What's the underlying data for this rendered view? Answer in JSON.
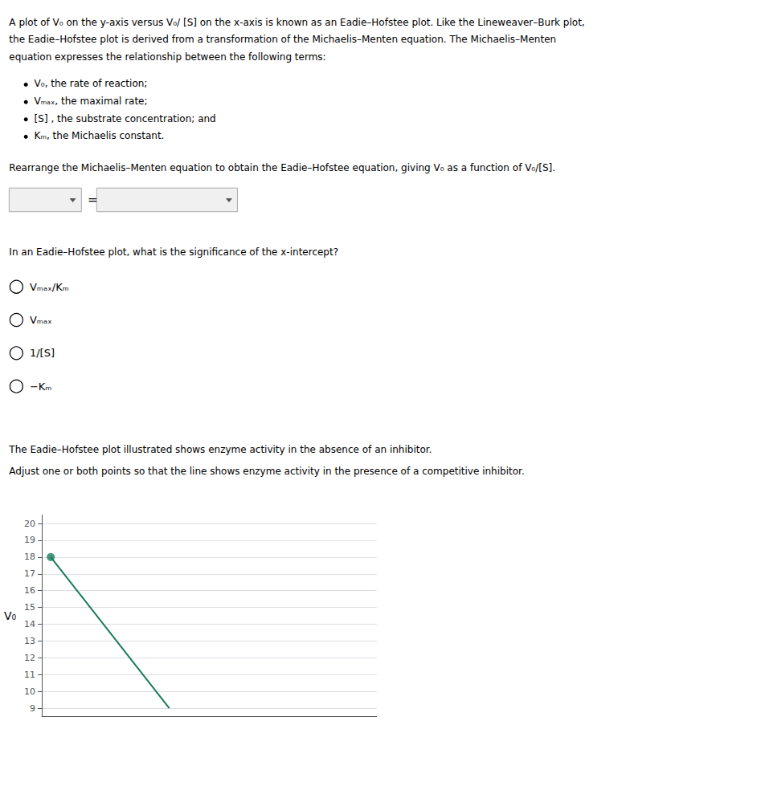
{
  "chart_data": {
    "type": "line",
    "annotations": [
      [
        "A plot of V₀ on the y-axis versus V₀/ [S] on the x-axis is known as an Eadie–Hofstee plot. Like the Lineweaver–Burk plot,",
        "the Eadie–Hofstee plot is derived from a transformation of the Michaelis–Menten equation. The Michaelis–Menten",
        "equation expresses the relationship between the following terms:"
      ],
      [
        "V₀, the rate of reaction;",
        "Vₘₐₓ, the maximal rate;",
        "[S] , the substrate concentration; and",
        "Kₘ, the Michaelis constant."
      ],
      [
        "Rearrange the Michaelis–Menten equation to obtain the Eadie–Hofstee equation, giving V₀ as a function of V₀/[S]."
      ],
      [
        "="
      ],
      [
        "In an Eadie–Hofstee plot, what is the significance of the x-intercept?"
      ],
      [
        "Vₘₐₓ/Kₘ",
        "Vₘₐₓ",
        "1/[S]",
        "−Kₘ"
      ],
      [
        "The Eadie–Hofstee plot illustrated shows enzyme activity in the absence of an inhibitor.",
        "Adjust one or both points so that the line shows enzyme activity in the presence of a competitive inhibitor."
      ]
    ],
    "ylabel": "V₀",
    "series": [
      {
        "type": "line",
        "color": "#1a7a5e",
        "x": [
          0,
          2
        ],
        "values": [
          18,
          9
        ]
      },
      {
        "type": "scatter",
        "color": "#1a7a5e",
        "x": [
          0
        ],
        "values": [
          18
        ]
      }
    ],
    "xlim": [
      -0.15,
      5.5
    ],
    "xticks": [],
    "ylim": [
      8.5,
      20.5
    ],
    "yticks": [
      9,
      10,
      11,
      12,
      13,
      14,
      15,
      16,
      17,
      18,
      19,
      20
    ],
    "grid": true,
    "tick_labels": "y"
  }
}
